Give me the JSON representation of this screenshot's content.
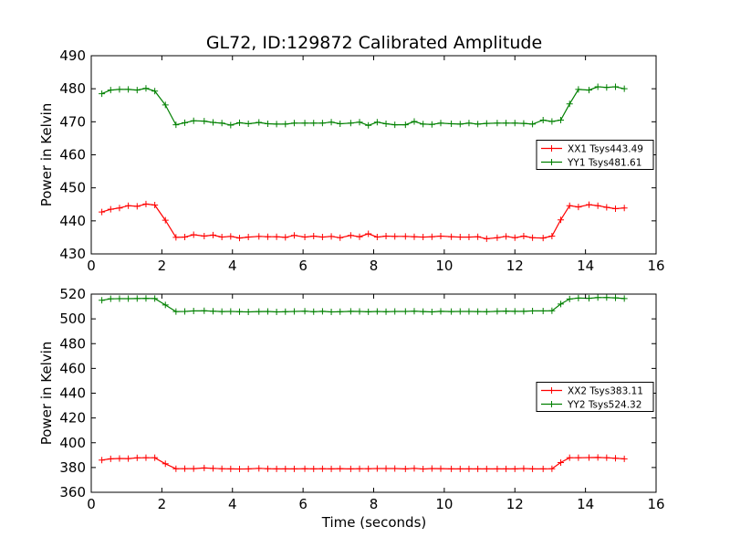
{
  "figure": {
    "title": "GL72, ID:129872 Calibrated Amplitude",
    "xlabel": "Time (seconds)"
  },
  "chart_data": [
    {
      "type": "line",
      "ylabel": "Power in Kelvin",
      "xlim": [
        0,
        16
      ],
      "ylim": [
        430,
        490
      ],
      "xticks": [
        0,
        2,
        4,
        6,
        8,
        10,
        12,
        14,
        16
      ],
      "yticks": [
        430,
        440,
        450,
        460,
        470,
        480,
        490
      ],
      "legend_position": "right",
      "x": [
        0.3,
        0.55,
        0.8,
        1.05,
        1.3,
        1.55,
        1.8,
        2.1,
        2.4,
        2.65,
        2.9,
        3.2,
        3.45,
        3.7,
        3.95,
        4.2,
        4.45,
        4.75,
        5.0,
        5.25,
        5.5,
        5.75,
        6.05,
        6.3,
        6.55,
        6.8,
        7.05,
        7.35,
        7.6,
        7.85,
        8.1,
        8.35,
        8.6,
        8.9,
        9.15,
        9.4,
        9.65,
        9.9,
        10.2,
        10.45,
        10.7,
        10.95,
        11.2,
        11.5,
        11.75,
        12.0,
        12.25,
        12.5,
        12.8,
        13.05,
        13.3,
        13.55,
        13.8,
        14.1,
        14.35,
        14.6,
        14.85,
        15.1
      ],
      "series": [
        {
          "name": "XX1 Tsys443.49",
          "color": "#ff0000",
          "values": [
            442.7,
            443.5,
            443.9,
            444.6,
            444.4,
            445.1,
            444.8,
            440.2,
            435.0,
            435.1,
            435.8,
            435.4,
            435.7,
            435.1,
            435.3,
            434.8,
            435.1,
            435.3,
            435.2,
            435.2,
            435.0,
            435.6,
            435.1,
            435.4,
            435.1,
            435.3,
            434.9,
            435.6,
            435.2,
            436.1,
            435.1,
            435.4,
            435.3,
            435.3,
            435.2,
            435.1,
            435.2,
            435.4,
            435.2,
            435.1,
            435.1,
            435.2,
            434.6,
            434.9,
            435.3,
            434.9,
            435.4,
            434.9,
            434.8,
            435.4,
            440.3,
            444.6,
            444.2,
            444.9,
            444.6,
            444.1,
            443.7,
            443.9
          ]
        },
        {
          "name": "YY1 Tsys481.61",
          "color": "#008000",
          "values": [
            478.5,
            479.6,
            479.8,
            479.8,
            479.6,
            480.1,
            479.3,
            475.1,
            469.1,
            469.7,
            470.3,
            470.2,
            469.8,
            469.6,
            469.0,
            469.7,
            469.4,
            469.8,
            469.4,
            469.3,
            469.3,
            469.6,
            469.6,
            469.6,
            469.6,
            469.9,
            469.4,
            469.6,
            469.9,
            468.9,
            469.9,
            469.4,
            469.1,
            469.1,
            470.1,
            469.3,
            469.2,
            469.6,
            469.4,
            469.3,
            469.6,
            469.3,
            469.5,
            469.6,
            469.6,
            469.6,
            469.5,
            469.3,
            470.5,
            470.1,
            470.5,
            475.4,
            479.8,
            479.6,
            480.6,
            480.4,
            480.6,
            480.0
          ]
        }
      ]
    },
    {
      "type": "line",
      "ylabel": "Power in Kelvin",
      "xlim": [
        0,
        16
      ],
      "ylim": [
        360,
        520
      ],
      "xticks": [
        0,
        2,
        4,
        6,
        8,
        10,
        12,
        14,
        16
      ],
      "yticks": [
        360,
        380,
        400,
        420,
        440,
        460,
        480,
        500,
        520
      ],
      "legend_position": "right",
      "x": [
        0.3,
        0.55,
        0.8,
        1.05,
        1.3,
        1.55,
        1.8,
        2.1,
        2.4,
        2.65,
        2.9,
        3.2,
        3.45,
        3.7,
        3.95,
        4.2,
        4.45,
        4.75,
        5.0,
        5.25,
        5.5,
        5.75,
        6.05,
        6.3,
        6.55,
        6.8,
        7.05,
        7.35,
        7.6,
        7.85,
        8.1,
        8.35,
        8.6,
        8.9,
        9.15,
        9.4,
        9.65,
        9.9,
        10.2,
        10.45,
        10.7,
        10.95,
        11.2,
        11.5,
        11.75,
        12.0,
        12.25,
        12.5,
        12.8,
        13.05,
        13.3,
        13.55,
        13.8,
        14.1,
        14.35,
        14.6,
        14.85,
        15.1
      ],
      "series": [
        {
          "name": "XX2 Tsys383.11",
          "color": "#ff0000",
          "values": [
            386.0,
            387.0,
            387.3,
            387.2,
            387.8,
            387.9,
            387.9,
            383.0,
            379.0,
            379.1,
            379.1,
            379.6,
            379.3,
            379.0,
            378.9,
            378.8,
            378.9,
            379.3,
            379.0,
            378.9,
            378.9,
            378.9,
            379.0,
            378.9,
            379.0,
            378.9,
            379.1,
            378.9,
            379.0,
            379.0,
            379.2,
            379.2,
            379.2,
            378.9,
            379.3,
            378.8,
            379.2,
            379.1,
            378.9,
            378.9,
            378.9,
            378.9,
            378.9,
            378.9,
            378.9,
            378.9,
            379.2,
            378.9,
            378.9,
            379.0,
            384.0,
            387.9,
            387.9,
            388.0,
            388.1,
            387.9,
            387.5,
            387.0
          ]
        },
        {
          "name": "YY2 Tsys524.32",
          "color": "#008000",
          "values": [
            515.0,
            516.2,
            516.3,
            516.3,
            516.4,
            516.5,
            516.4,
            511.2,
            505.9,
            506.0,
            506.4,
            506.5,
            506.2,
            505.9,
            506.0,
            505.8,
            505.6,
            505.9,
            506.0,
            505.6,
            505.8,
            506.0,
            506.2,
            505.8,
            506.1,
            505.6,
            505.8,
            506.1,
            506.0,
            505.7,
            506.0,
            505.8,
            506.0,
            506.0,
            506.2,
            505.9,
            505.6,
            506.1,
            505.9,
            506.0,
            506.0,
            505.9,
            505.8,
            506.1,
            506.3,
            506.1,
            506.1,
            506.4,
            506.4,
            506.5,
            512.0,
            516.0,
            516.8,
            516.6,
            517.2,
            517.2,
            517.0,
            516.4
          ]
        }
      ]
    }
  ]
}
